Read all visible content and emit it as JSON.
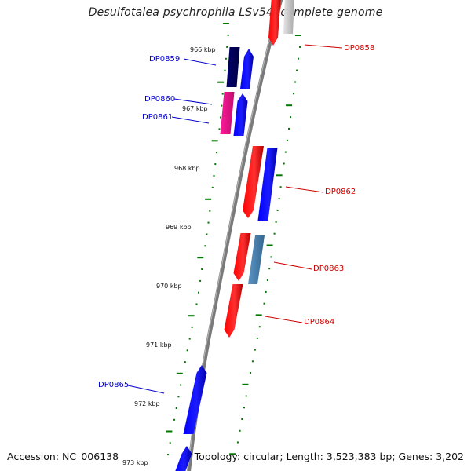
{
  "title": "Desulfotalea psychrophila LSv54, complete genome",
  "accession": "Accession: NC_006138",
  "topology": "Topology: circular; Length: 3,523,383 bp; Genes: 3,202",
  "colors": {
    "forward_label": "#0000cc",
    "reverse_label": "#cc0000",
    "tick": "#007700",
    "backbone": "#7a7a7a",
    "blue": "#0000ff",
    "navy": "#000066",
    "red": "#ff0000",
    "magenta": "#ee1493",
    "steelblue": "#4682b4",
    "gray": "#bbbbbb"
  },
  "kbp_labels": [
    "966 kbp",
    "967 kbp",
    "968 kbp",
    "969 kbp",
    "970 kbp",
    "971 kbp",
    "972 kbp",
    "973 kbp"
  ],
  "gene_labels": [
    "DP0858",
    "DP0859",
    "DP0860",
    "DP0861",
    "DP0862",
    "DP0863",
    "DP0864",
    "DP0865"
  ],
  "genes": [
    {
      "name": "DP0858",
      "strand": "reverse",
      "color": "red"
    },
    {
      "name": "DP0858-function",
      "strand": "reverse",
      "color": "gray"
    },
    {
      "name": "DP0859",
      "strand": "forward",
      "color": "blue"
    },
    {
      "name": "DP0859-function",
      "strand": "forward",
      "color": "navy"
    },
    {
      "name": "DP0860",
      "strand": "forward",
      "color": "blue"
    },
    {
      "name": "DP0860-function",
      "strand": "forward",
      "color": "magenta"
    },
    {
      "name": "DP0862",
      "strand": "reverse",
      "color": "red"
    },
    {
      "name": "DP0862-function",
      "strand": "reverse",
      "color": "blue"
    },
    {
      "name": "DP0863",
      "strand": "reverse",
      "color": "red"
    },
    {
      "name": "DP0863-function",
      "strand": "reverse",
      "color": "steelblue"
    },
    {
      "name": "DP0864",
      "strand": "reverse",
      "color": "red"
    },
    {
      "name": "DP0865",
      "strand": "forward",
      "color": "blue"
    },
    {
      "name": "DP0866",
      "strand": "forward",
      "color": "blue"
    }
  ]
}
